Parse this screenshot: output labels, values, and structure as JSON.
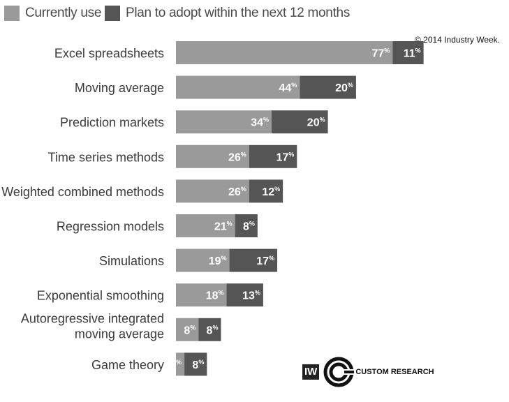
{
  "legend": {
    "current_label": "Currently use",
    "plan_label": "Plan to adopt within the next 12 months"
  },
  "copyright": "© 2014 Industry Week.",
  "logo": {
    "iw_text": "IW",
    "text": "CUSTOM RESEARCH"
  },
  "colors": {
    "current": "#9a9a9a",
    "plan": "#555555",
    "label_text": "#3a3a3a",
    "value_text": "#ffffff"
  },
  "chart_data": {
    "type": "bar",
    "orientation": "horizontal",
    "stacked": true,
    "categories": [
      [
        "Excel spreadsheets"
      ],
      [
        "Moving average"
      ],
      [
        "Prediction markets"
      ],
      [
        "Time series methods"
      ],
      [
        "Weighted combined methods"
      ],
      [
        "Regression models"
      ],
      [
        "Simulations"
      ],
      [
        "Exponential smoothing"
      ],
      [
        "Autoregressive integrated",
        "moving average"
      ],
      [
        "Game theory"
      ]
    ],
    "series": [
      {
        "name": "Currently use",
        "values": [
          77,
          44,
          34,
          26,
          26,
          21,
          19,
          18,
          8,
          3
        ]
      },
      {
        "name": "Plan to adopt within the next 12 months",
        "values": [
          11,
          20,
          20,
          17,
          12,
          8,
          17,
          13,
          8,
          8
        ]
      }
    ],
    "value_suffix": "%"
  }
}
